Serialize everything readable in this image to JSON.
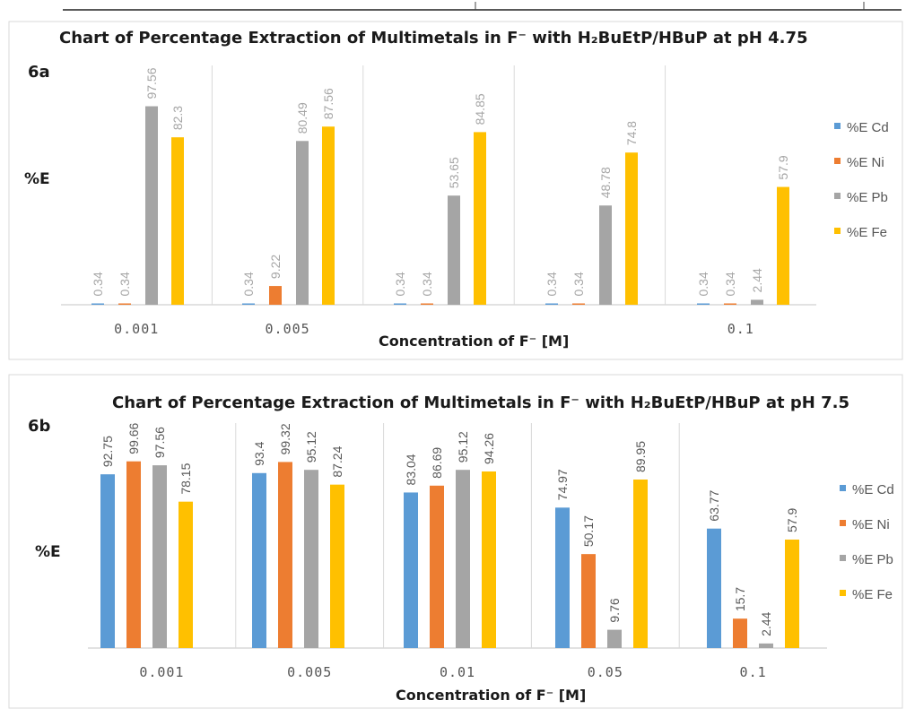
{
  "chart_data": [
    {
      "type": "bar",
      "panel_label": "6a",
      "title": "Chart of Percentage Extraction of Multimetals in F⁻ with H₂BuEtP/HBuP at pH 4.75",
      "xlabel": "Concentration of F⁻ [M]",
      "ylabel": "%E",
      "categories": [
        "0.001",
        "0.005",
        "",
        "",
        "0.1"
      ],
      "ylim": [
        0,
        100
      ],
      "grid": false,
      "legend_position": "right",
      "series": [
        {
          "name": "%E  Cd",
          "values": [
            0.34,
            0.34,
            0.34,
            0.34,
            0.34
          ]
        },
        {
          "name": "%E Ni",
          "values": [
            0.34,
            9.22,
            0.34,
            0.34,
            0.34
          ]
        },
        {
          "name": "%E Pb",
          "values": [
            97.56,
            80.49,
            53.65,
            48.78,
            2.44
          ]
        },
        {
          "name": "%E Fe",
          "values": [
            82.3,
            87.56,
            84.85,
            74.8,
            57.9
          ]
        }
      ],
      "data_labels": [
        [
          "0.34",
          "0.34",
          "0.34",
          "0.34",
          "0.34"
        ],
        [
          "0.34",
          "9.22",
          "0.34",
          "0.34",
          "0.34"
        ],
        [
          "97.56",
          "80.49",
          "53.65",
          "48.78",
          "2.44"
        ],
        [
          "82.3",
          "87.56",
          "84.85",
          "74.8",
          "57.9"
        ]
      ]
    },
    {
      "type": "bar",
      "panel_label": "6b",
      "title": "Chart of Percentage Extraction of Multimetals in F⁻ with H₂BuEtP/HBuP at pH 7.5",
      "xlabel": "Concentration of F⁻ [M]",
      "ylabel": "%E",
      "categories": [
        "0.001",
        "0.005",
        "0.01",
        "0.05",
        "0.1"
      ],
      "ylim": [
        0,
        100
      ],
      "grid": false,
      "legend_position": "right",
      "series": [
        {
          "name": "%E  Cd",
          "values": [
            92.75,
            93.4,
            83.04,
            74.97,
            63.77
          ]
        },
        {
          "name": "%E Ni",
          "values": [
            99.66,
            99.32,
            86.69,
            50.17,
            15.7
          ]
        },
        {
          "name": "%E Pb",
          "values": [
            97.56,
            95.12,
            95.12,
            9.76,
            2.44
          ]
        },
        {
          "name": "%E Fe",
          "values": [
            78.15,
            87.24,
            94.26,
            89.95,
            57.9
          ]
        }
      ],
      "data_labels": [
        [
          "92.75",
          "93.4",
          "83.04",
          "74.97",
          "63.77"
        ],
        [
          "99.66",
          "99.32",
          "86.69",
          "50.17",
          "15.7"
        ],
        [
          "97.56",
          "95.12",
          "95.12",
          "9.76",
          "2.44"
        ],
        [
          "78.15",
          "87.24",
          "94.26",
          "89.95",
          "57.9"
        ]
      ]
    }
  ],
  "colors": {
    "cd": "#5b9bd5",
    "ni": "#ed7d31",
    "pb": "#a5a5a5",
    "fe": "#ffc000",
    "frame": "#d9d9d9",
    "axis": "#d9d9d9"
  }
}
